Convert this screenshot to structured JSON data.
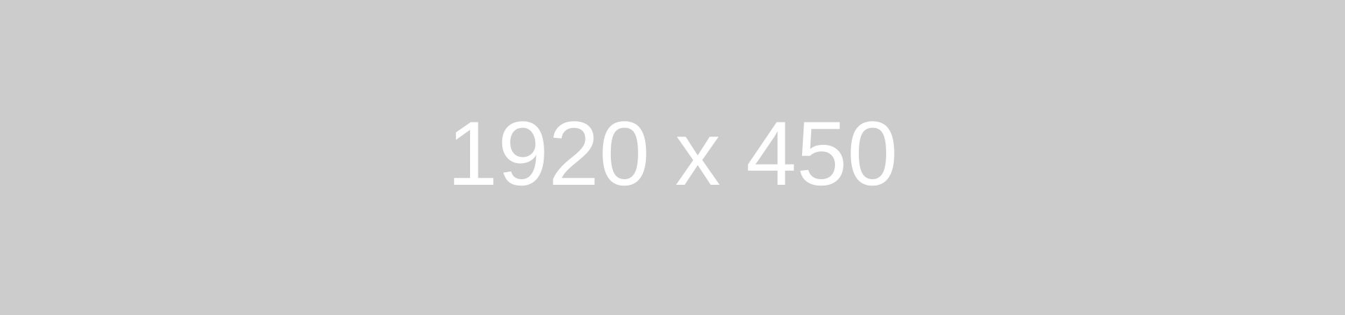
{
  "placeholder": {
    "label": "1920 x 450",
    "background_color": "#cccccc",
    "text_color": "#ffffff"
  }
}
